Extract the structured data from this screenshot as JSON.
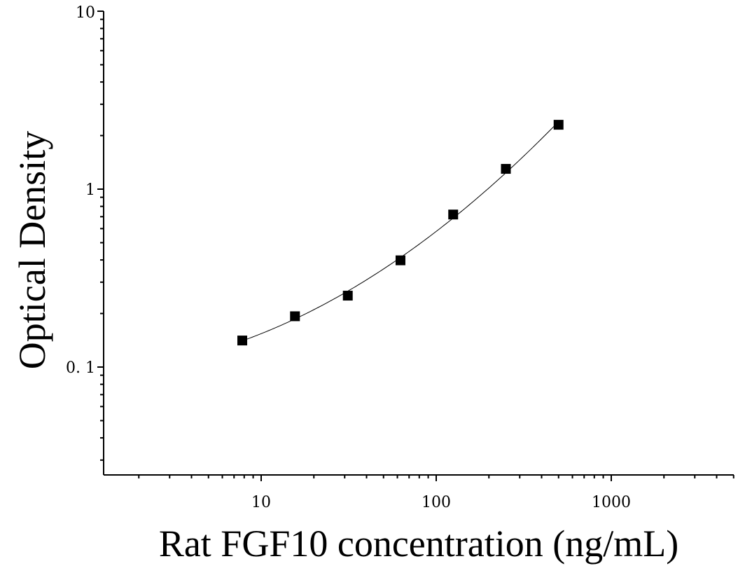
{
  "chart_data": {
    "type": "scatter",
    "xlabel": "Rat FGF10 concentration (ng/mL)",
    "ylabel": "Optical Density",
    "x_scale": "log",
    "y_scale": "log",
    "xlim": [
      1.3,
      5000
    ],
    "ylim": [
      0.025,
      10
    ],
    "x_tick_labels": [
      "10",
      "100",
      "1000"
    ],
    "y_tick_labels": [
      "0. 1",
      "1",
      "10"
    ],
    "grid": false,
    "series": [
      {
        "x": [
          7.8,
          15.6,
          31.25,
          62.5,
          125,
          250,
          500
        ],
        "y": [
          0.141,
          0.193,
          0.252,
          0.398,
          0.72,
          1.3,
          2.3
        ],
        "marker": "square",
        "fit_curve": true
      }
    ]
  }
}
